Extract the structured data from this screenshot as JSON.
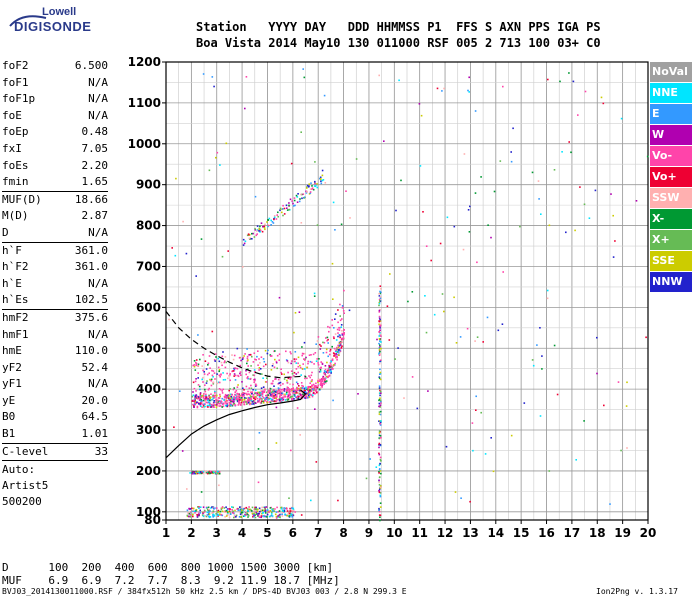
{
  "logo": {
    "line1": "Lowell",
    "line2": "DIGISONDE"
  },
  "header": {
    "row1": "Station   YYYY DAY   DDD HHMMSS P1  FFS S AXN PPS IGA PS",
    "row2": "Boa Vista 2014 May10 130 011000 RSF 005 2 713 100 03+ C0"
  },
  "params": [
    {
      "k": "foF2",
      "v": "6.500"
    },
    {
      "k": "foF1",
      "v": "N/A"
    },
    {
      "k": "foF1p",
      "v": "N/A"
    },
    {
      "k": "foE",
      "v": "N/A"
    },
    {
      "k": "foEp",
      "v": "0.48"
    },
    {
      "k": "fxI",
      "v": "7.05"
    },
    {
      "k": "foEs",
      "v": "2.20"
    },
    {
      "k": "fmin",
      "v": "1.65"
    },
    {
      "sep": true
    },
    {
      "k": "MUF(D)",
      "v": "18.66"
    },
    {
      "k": "M(D)",
      "v": "2.87"
    },
    {
      "k": "D",
      "v": "N/A"
    },
    {
      "sep": true
    },
    {
      "k": "h`F",
      "v": "361.0"
    },
    {
      "k": "h`F2",
      "v": "361.0"
    },
    {
      "k": "h`E",
      "v": "N/A"
    },
    {
      "k": "h`Es",
      "v": "102.5"
    },
    {
      "sep": true
    },
    {
      "k": "hmF2",
      "v": "375.6"
    },
    {
      "k": "hmF1",
      "v": "N/A"
    },
    {
      "k": "hmE",
      "v": "110.0"
    },
    {
      "k": "yF2",
      "v": "52.4"
    },
    {
      "k": "yF1",
      "v": "N/A"
    },
    {
      "k": "yE",
      "v": "20.0"
    },
    {
      "k": "B0",
      "v": "64.5"
    },
    {
      "k": "B1",
      "v": "1.01"
    },
    {
      "sep": true
    },
    {
      "k": "C-level",
      "v": "33"
    },
    {
      "sep": true
    }
  ],
  "auto": {
    "l1": "Auto:",
    "l2": "Artist5",
    "l3": "500200"
  },
  "legend": [
    {
      "label": "NoVal",
      "bg": "#a0a0a0",
      "fg": "#ffffff"
    },
    {
      "label": "NNE",
      "bg": "#00e5ff",
      "fg": "#ffffff"
    },
    {
      "label": "E",
      "bg": "#3399ff",
      "fg": "#ffffff"
    },
    {
      "label": "W",
      "bg": "#b000b0",
      "fg": "#ffffff"
    },
    {
      "label": "Vo-",
      "bg": "#ff44aa",
      "fg": "#ffffff"
    },
    {
      "label": "Vo+",
      "bg": "#ee0033",
      "fg": "#ffffff"
    },
    {
      "label": "SSW",
      "bg": "#ffb0b0",
      "fg": "#ffffff"
    },
    {
      "label": "X-",
      "bg": "#009933",
      "fg": "#ffffff"
    },
    {
      "label": "X+",
      "bg": "#66bb55",
      "fg": "#ffffff"
    },
    {
      "label": "SSE",
      "bg": "#cccc00",
      "fg": "#ffffff"
    },
    {
      "label": "NNW",
      "bg": "#2222cc",
      "fg": "#ffffff"
    }
  ],
  "bottom": {
    "d_row": "D      100  200  400  600  800 1000 1500 3000 [km]",
    "muf_row": "MUF    6.9  6.9  7.2  7.7  8.3  9.2 11.9 18.7 [MHz]"
  },
  "footer": {
    "left": "BVJ03_2014130011000.RSF / 384fx512h 50 kHz 2.5 km / DPS-4D BVJ03 003 / 2.8 N 299.3 E",
    "right": "Ion2Png v. 1.3.17"
  },
  "chart_data": {
    "type": "scatter",
    "title": "",
    "xlabel": "",
    "ylabel": "",
    "xlim": [
      1,
      20
    ],
    "ylim": [
      80,
      1200
    ],
    "x_ticks": [
      1,
      2,
      3,
      4,
      5,
      6,
      7,
      8,
      9,
      10,
      11,
      12,
      13,
      14,
      15,
      16,
      17,
      18,
      19,
      20
    ],
    "y_ticks": [
      80,
      100,
      200,
      300,
      400,
      500,
      600,
      700,
      800,
      900,
      1000,
      1100,
      1200
    ],
    "grid": true,
    "traces": [
      {
        "name": "",
        "style": "solid",
        "points": [
          [
            1,
            232
          ],
          [
            1.5,
            262
          ],
          [
            2,
            290
          ],
          [
            2.5,
            310
          ],
          [
            3,
            325
          ],
          [
            3.5,
            338
          ],
          [
            4,
            347
          ],
          [
            4.5,
            355
          ],
          [
            5,
            362
          ],
          [
            5.5,
            366
          ],
          [
            6,
            371
          ],
          [
            6.3,
            375
          ],
          [
            6.5,
            388
          ],
          [
            6.3,
            398
          ]
        ]
      },
      {
        "name": "",
        "style": "dashed",
        "points": [
          [
            1,
            590
          ],
          [
            1.5,
            550
          ],
          [
            2,
            522
          ],
          [
            2.5,
            500
          ],
          [
            3,
            482
          ],
          [
            3.5,
            466
          ],
          [
            4,
            452
          ],
          [
            4.5,
            441
          ],
          [
            5,
            432
          ],
          [
            5.5,
            428
          ],
          [
            6,
            430
          ],
          [
            6.5,
            432
          ]
        ]
      }
    ]
  }
}
